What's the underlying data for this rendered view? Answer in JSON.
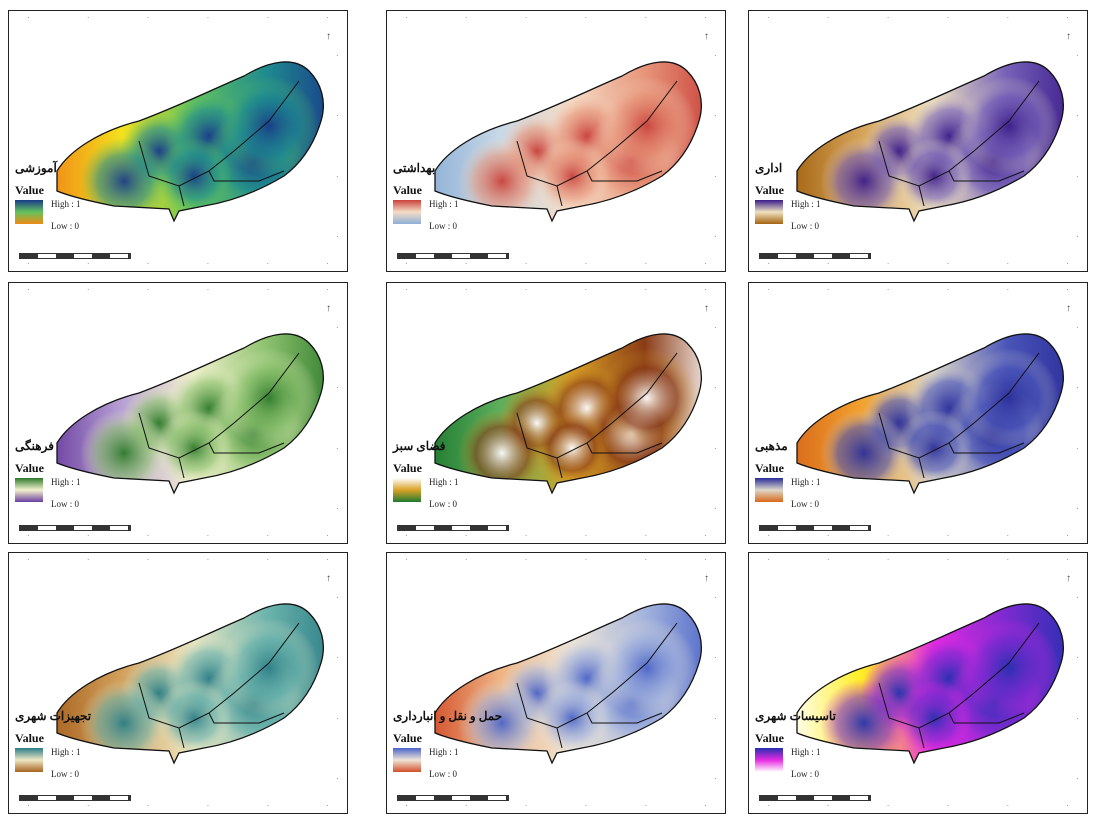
{
  "axis": {
    "top_ticks": [
      "",
      "",
      "",
      "",
      "",
      ""
    ],
    "north_label": "N"
  },
  "legend_common": {
    "title": "Value",
    "high": "High : 1",
    "low": "Low : 0"
  },
  "panels": [
    {
      "label": "آموزشی",
      "low": "Low : 0",
      "colors": [
        "#183a8a",
        "#1f8a8f",
        "#63c35d",
        "#f4e01e",
        "#f08a16"
      ]
    },
    {
      "label": "بهداشتی",
      "low": "Low : 0",
      "colors": [
        "#c9403a",
        "#e7957a",
        "#f5dcc6",
        "#c7d8e6",
        "#8eb0d6"
      ]
    },
    {
      "label": "اداری",
      "low": "Low : 0",
      "colors": [
        "#3b1b8a",
        "#7661b8",
        "#efe2c1",
        "#d6a35a",
        "#a46412"
      ]
    },
    {
      "label": "فرهنگی",
      "low": "Low : 0",
      "colors": [
        "#2d7a2a",
        "#8dc26f",
        "#f4f2cf",
        "#b7a0d4",
        "#6b3fa0"
      ]
    },
    {
      "label": "فضای سبز",
      "low": "Low : 0",
      "colors": [
        "#ffffff",
        "#8a3b15",
        "#d9a226",
        "#5cae5c",
        "#1f7a30"
      ]
    },
    {
      "label": "مذهبی",
      "low": "Low : 0",
      "colors": [
        "#2a2d9a",
        "#4a55b8",
        "#ded8c9",
        "#f2a12e",
        "#d8681b"
      ]
    },
    {
      "label": "تجهیزات شهری",
      "low": "Low : 0",
      "colors": [
        "#2a7d86",
        "#6db4ad",
        "#eee8c4",
        "#d2a05c",
        "#a86320"
      ]
    },
    {
      "label": "حمل و نقل و انبارداری",
      "low": "Low : 0",
      "colors": [
        "#4a63c8",
        "#a4b4dd",
        "#efe6d7",
        "#efb383",
        "#d24e2a"
      ]
    },
    {
      "label": "تاسیسات شهری",
      "low": "Low : 0",
      "colors": [
        "#2430b0",
        "#7a2ad0",
        "#e72ae2",
        "#ffee22",
        "#ffffff"
      ]
    }
  ]
}
